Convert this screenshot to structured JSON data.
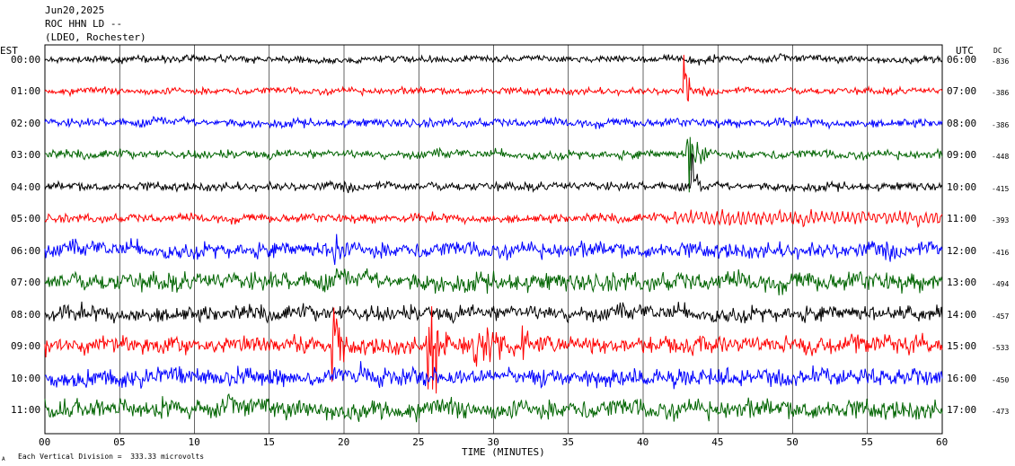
{
  "header": {
    "date": "Jun20,2025",
    "station": "ROC HHN LD --",
    "network": "(LDEO, Rochester)"
  },
  "left_axis_label": "EST",
  "right_axis_label": "UTC",
  "dc_label": "DC",
  "footer": {
    "scale_text": "Each Vertical Division =  333.33 microvolts",
    "mark": "A"
  },
  "chart_data": {
    "type": "line",
    "title": "",
    "xlabel": "TIME (MINUTES)",
    "ylabel": "",
    "xlim": [
      0,
      60
    ],
    "x_ticks": [
      "00",
      "05",
      "10",
      "15",
      "20",
      "25",
      "30",
      "35",
      "40",
      "45",
      "50",
      "55",
      "60"
    ],
    "grid": "vertical lines every 5 minutes",
    "colors": [
      "#000000",
      "#ff0000",
      "#0000ff",
      "#006400"
    ],
    "rows": [
      {
        "est": "00:00",
        "utc": "06:00",
        "dc": "-836",
        "color": "#000000",
        "amp": 4
      },
      {
        "est": "01:00",
        "utc": "07:00",
        "dc": "-386",
        "color": "#ff0000",
        "amp": 4
      },
      {
        "est": "02:00",
        "utc": "08:00",
        "dc": "-386",
        "color": "#0000ff",
        "amp": 5
      },
      {
        "est": "03:00",
        "utc": "09:00",
        "dc": "-448",
        "color": "#006400",
        "amp": 5
      },
      {
        "est": "04:00",
        "utc": "10:00",
        "dc": "-415",
        "color": "#000000",
        "amp": 5
      },
      {
        "est": "05:00",
        "utc": "11:00",
        "dc": "-393",
        "color": "#ff0000",
        "amp": 5
      },
      {
        "est": "06:00",
        "utc": "12:00",
        "dc": "-416",
        "color": "#0000ff",
        "amp": 9
      },
      {
        "est": "07:00",
        "utc": "13:00",
        "dc": "-494",
        "color": "#006400",
        "amp": 11
      },
      {
        "est": "08:00",
        "utc": "14:00",
        "dc": "-457",
        "color": "#000000",
        "amp": 9
      },
      {
        "est": "09:00",
        "utc": "15:00",
        "dc": "-533",
        "color": "#ff0000",
        "amp": 10
      },
      {
        "est": "10:00",
        "utc": "16:00",
        "dc": "-450",
        "color": "#0000ff",
        "amp": 10
      },
      {
        "est": "11:00",
        "utc": "17:00",
        "dc": "-473",
        "color": "#006400",
        "amp": 11
      }
    ],
    "events": [
      {
        "row": 1,
        "minute": 42.8,
        "amp": 40,
        "dur": 0.3
      },
      {
        "row": 3,
        "minute": 43.0,
        "amp": 30,
        "dur": 1.5
      },
      {
        "row": 4,
        "minute": 43.3,
        "amp": 20,
        "dur": 0.6
      },
      {
        "row": 6,
        "minute": 19.4,
        "amp": 30,
        "dur": 0.4
      },
      {
        "row": 9,
        "minute": 19.3,
        "amp": 38,
        "dur": 0.8
      },
      {
        "row": 9,
        "minute": 25.7,
        "amp": 45,
        "dur": 1.2
      },
      {
        "row": 9,
        "minute": 28.8,
        "amp": 30,
        "dur": 2.0
      },
      {
        "row": 9,
        "minute": 32.0,
        "amp": 35,
        "dur": 0.4
      }
    ]
  }
}
